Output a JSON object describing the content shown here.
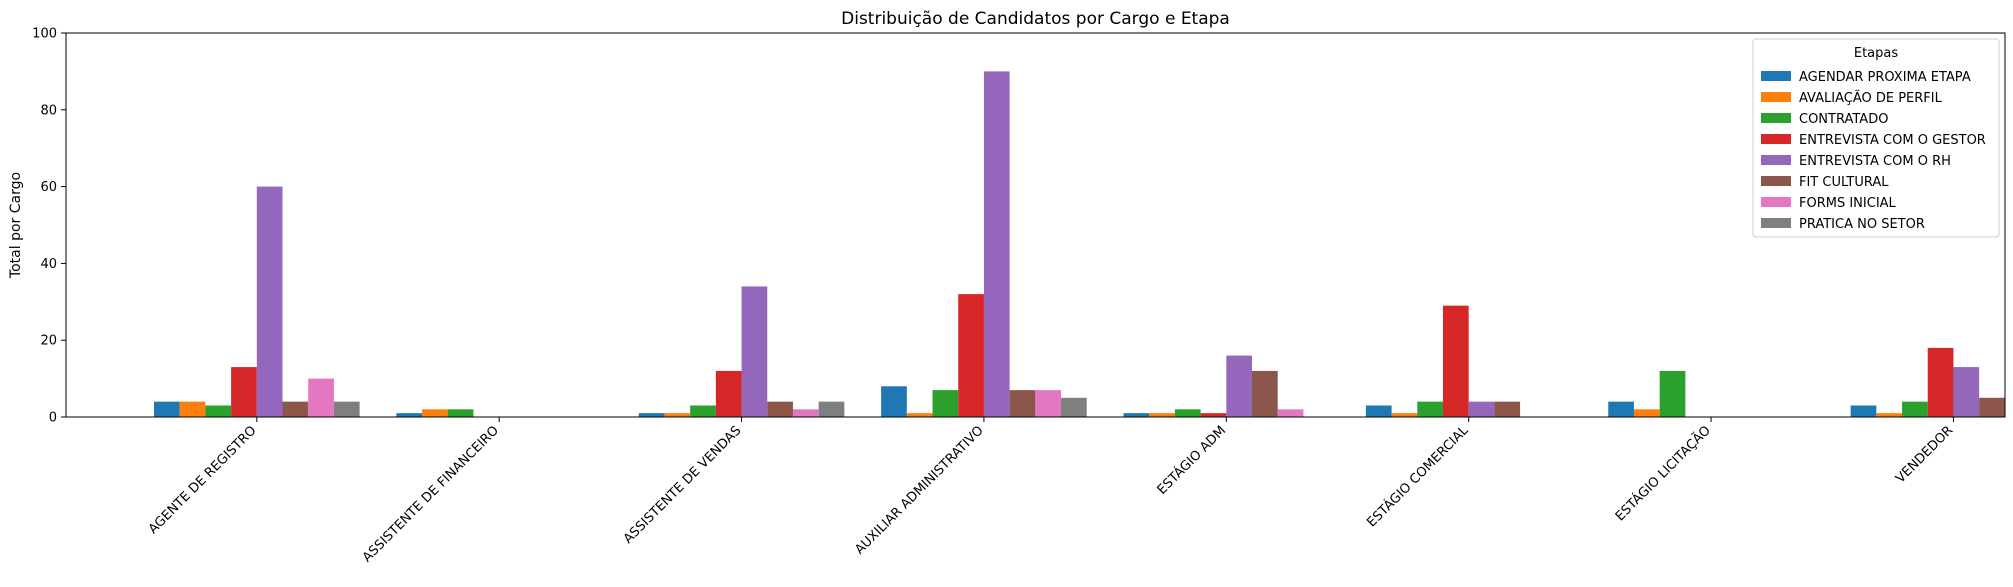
{
  "chart_data": {
    "type": "bar",
    "title": "Distribuição de Candidatos por Cargo e Etapa",
    "xlabel": "",
    "ylabel": "Total por Cargo",
    "ylim": [
      0,
      100
    ],
    "yticks": [
      0,
      20,
      40,
      60,
      80,
      100
    ],
    "grid": false,
    "legend": {
      "title": "Etapas",
      "position": "top-right"
    },
    "categories": [
      "AGENTE DE REGISTRO",
      "ASSISTENTE DE FINANCEIRO",
      "ASSISTENTE DE VENDAS",
      "AUXILIAR ADMINISTRATIVO",
      "ESTÁGIO ADM",
      "ESTÁGIO COMERCIAL",
      "ESTÁGIO LICITAÇÃO",
      "VENDEDOR"
    ],
    "series": [
      {
        "name": "AGENDAR PROXIMA ETAPA",
        "color": "#1f77b4",
        "values": [
          4,
          1,
          1,
          8,
          1,
          3,
          4,
          3
        ]
      },
      {
        "name": "AVALIAÇÃO DE PERFIL",
        "color": "#ff7f0e",
        "values": [
          4,
          2,
          1,
          1,
          1,
          1,
          2,
          1
        ]
      },
      {
        "name": "CONTRATADO",
        "color": "#2ca02c",
        "values": [
          3,
          2,
          3,
          7,
          2,
          4,
          12,
          4
        ]
      },
      {
        "name": "ENTREVISTA COM O GESTOR",
        "color": "#d62728",
        "values": [
          13,
          0,
          12,
          32,
          1,
          29,
          0,
          18
        ]
      },
      {
        "name": "ENTREVISTA COM O RH",
        "color": "#9467bd",
        "values": [
          60,
          0,
          34,
          90,
          16,
          4,
          0,
          13
        ]
      },
      {
        "name": "FIT CULTURAL",
        "color": "#8c564b",
        "values": [
          4,
          0,
          4,
          7,
          12,
          4,
          0,
          5
        ]
      },
      {
        "name": "FORMS INICIAL",
        "color": "#e377c2",
        "values": [
          10,
          0,
          2,
          7,
          2,
          0,
          0,
          0
        ]
      },
      {
        "name": "PRATICA NO SETOR",
        "color": "#7f7f7f",
        "values": [
          4,
          0,
          4,
          5,
          0,
          0,
          0,
          0
        ]
      }
    ]
  }
}
